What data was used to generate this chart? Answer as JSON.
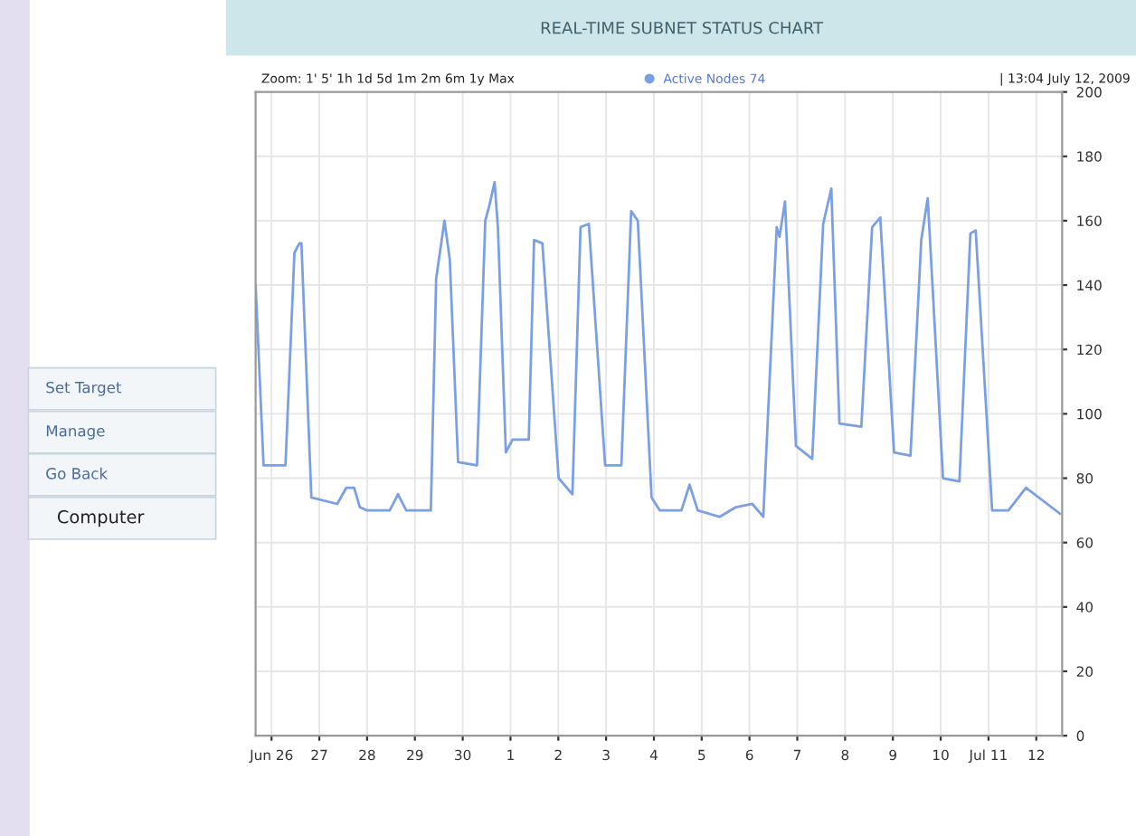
{
  "chart_data": {
    "type": "line",
    "title": "REAL-TIME SUBNET STATUS CHART",
    "x": [
      "2009-06-25T16:00",
      "2009-06-25T20:00",
      "2009-06-26T07:00",
      "2009-06-26T11:30",
      "2009-06-26T14:00",
      "2009-06-26T15:00",
      "2009-06-26T20:00",
      "2009-06-27T09:00",
      "2009-06-27T13:30",
      "2009-06-27T17:30",
      "2009-06-27T20:20",
      "2009-06-27T23:40",
      "2009-06-28T11:20",
      "2009-06-28T15:30",
      "2009-06-28T19:40",
      "2009-06-29T08:00",
      "2009-06-29T10:40",
      "2009-06-29T14:50",
      "2009-06-29T17:30",
      "2009-06-29T21:40",
      "2009-06-30T07:10",
      "2009-06-30T11:20",
      "2009-06-30T13:30",
      "2009-06-30T16:00",
      "2009-06-30T17:40",
      "2009-06-30T21:40",
      "2009-07-01T01:00",
      "2009-07-01T09:10",
      "2009-07-01T11:50",
      "2009-07-01T16:00",
      "2009-07-02T00:10",
      "2009-07-02T07:05",
      "2009-07-02T11:10",
      "2009-07-02T15:20",
      "2009-07-02T23:30",
      "2009-07-03T07:40",
      "2009-07-03T12:35",
      "2009-07-03T15:55",
      "2009-07-03T22:50",
      "2009-07-04T02:55",
      "2009-07-04T13:50",
      "2009-07-04T17:55",
      "2009-07-04T22:00",
      "2009-07-05T09:00",
      "2009-07-05T17:10",
      "2009-07-06T01:25",
      "2009-07-06T06:55",
      "2009-07-06T13:40",
      "2009-07-06T15:05",
      "2009-07-06T17:50",
      "2009-07-06T23:20",
      "2009-07-07T07:30",
      "2009-07-07T13:00",
      "2009-07-07T17:05",
      "2009-07-07T21:10",
      "2009-07-08T08:10",
      "2009-07-08T13:35",
      "2009-07-08T17:40",
      "2009-07-09T00:35",
      "2009-07-09T08:50",
      "2009-07-09T14:15",
      "2009-07-09T17:30",
      "2009-07-10T01:10",
      "2009-07-10T09:25",
      "2009-07-10T14:55",
      "2009-07-10T17:35",
      "2009-07-11T01:50",
      "2009-07-11T10:00",
      "2009-07-11T18:50",
      "2009-07-12T11:50"
    ],
    "series": [
      {
        "name": "Active Nodes 74",
        "color": "#7b9fe3",
        "values": [
          140,
          84,
          84,
          150,
          153,
          153,
          74,
          72,
          77,
          77,
          71,
          70,
          70,
          75,
          70,
          70,
          142,
          160,
          148,
          85,
          84,
          160,
          165,
          172,
          158,
          88,
          92,
          92,
          154,
          153,
          80,
          75,
          158,
          159,
          84,
          84,
          163,
          160,
          74,
          70,
          70,
          78,
          70,
          68,
          71,
          72,
          68,
          158,
          155,
          166,
          90,
          86,
          159,
          170,
          97,
          96,
          158,
          161,
          88,
          87,
          154,
          167,
          80,
          79,
          156,
          157,
          70,
          70,
          77,
          69
        ]
      }
    ],
    "xlim": [
      "2009-06-25T16:00",
      "2009-07-12T13:00"
    ],
    "xticks": [
      {
        "value": "2009-06-26",
        "label": "Jun 26"
      },
      {
        "value": "2009-06-27",
        "label": "27"
      },
      {
        "value": "2009-06-28",
        "label": "28"
      },
      {
        "value": "2009-06-29",
        "label": "29"
      },
      {
        "value": "2009-06-30",
        "label": "30"
      },
      {
        "value": "2009-07-01",
        "label": "1"
      },
      {
        "value": "2009-07-02",
        "label": "2"
      },
      {
        "value": "2009-07-03",
        "label": "3"
      },
      {
        "value": "2009-07-04",
        "label": "4"
      },
      {
        "value": "2009-07-05",
        "label": "5"
      },
      {
        "value": "2009-07-06",
        "label": "6"
      },
      {
        "value": "2009-07-07",
        "label": "7"
      },
      {
        "value": "2009-07-08",
        "label": "8"
      },
      {
        "value": "2009-07-09",
        "label": "9"
      },
      {
        "value": "2009-07-10",
        "label": "10"
      },
      {
        "value": "2009-07-11",
        "label": "Jul 11"
      },
      {
        "value": "2009-07-12",
        "label": "12"
      }
    ],
    "ylim": [
      0,
      200
    ],
    "yticks": [
      0,
      20,
      40,
      60,
      80,
      100,
      120,
      140,
      160,
      180,
      200
    ],
    "grid": true,
    "legend": "top right",
    "marker": "none",
    "line_style": "solid",
    "annotations": [
      "Zoom: 1' 5' 1h 1d 5d 1m 2m 6m 1y Max",
      "| 13:04 July 12, 2009",
      "Set Target",
      "Manage",
      "Go Back",
      "Computer"
    ]
  }
}
